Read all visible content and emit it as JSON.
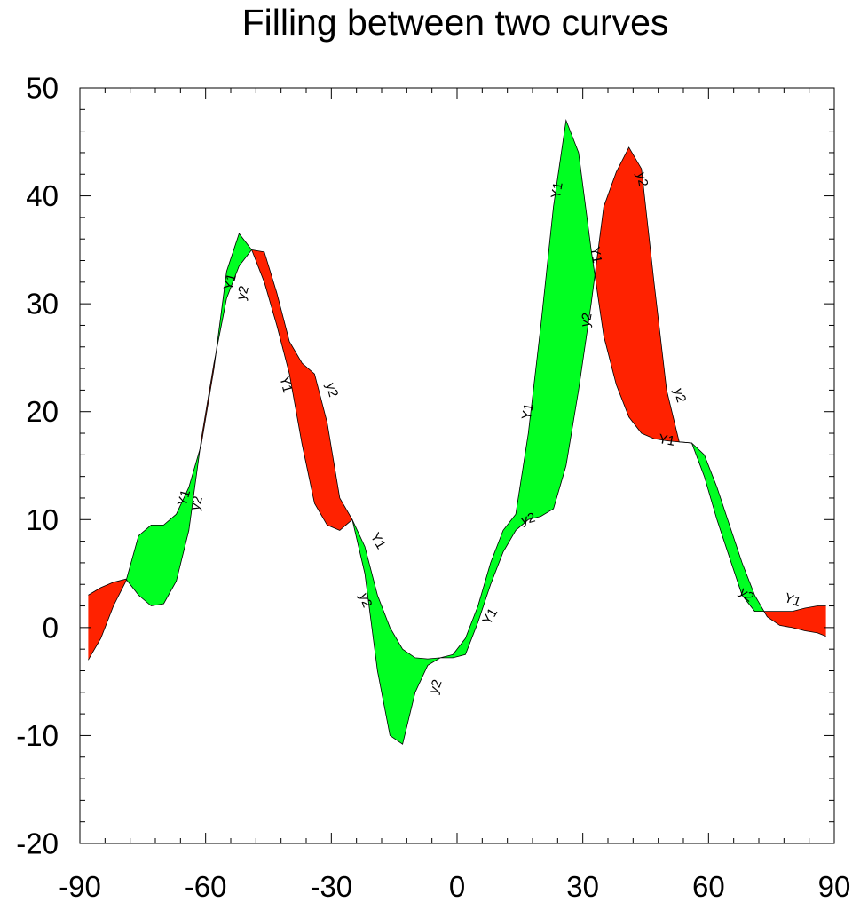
{
  "chart_data": {
    "type": "area",
    "title": "Filling between two curves",
    "xlabel": "",
    "ylabel": "",
    "xlim": [
      -90,
      90
    ],
    "ylim": [
      -20,
      50
    ],
    "x_ticks": [
      "-90",
      "-60",
      "-30",
      "0",
      "30",
      "60",
      "90"
    ],
    "y_ticks": [
      "-20",
      "-10",
      "0",
      "10",
      "20",
      "30",
      "40",
      "50"
    ],
    "fill_colors": {
      "above": "#00ff22",
      "below": "#ff2200"
    },
    "series": [
      {
        "name": "Y1",
        "x": [
          -88,
          -85,
          -82,
          -79,
          -76,
          -73,
          -70,
          -67,
          -64,
          -61,
          -58,
          -55,
          -52,
          -49,
          -46,
          -43,
          -40,
          -37,
          -34,
          -31,
          -28,
          -25,
          -22,
          -19,
          -16,
          -13,
          -10,
          -7,
          -4,
          -1,
          2,
          5,
          8,
          11,
          14,
          17,
          20,
          23,
          26,
          29,
          32,
          35,
          38,
          41,
          44,
          47,
          50,
          53,
          56,
          59,
          62,
          65,
          68,
          71,
          74,
          77,
          80,
          83,
          86,
          88
        ],
        "y": [
          -3,
          -1,
          2,
          4.3,
          8.5,
          9.5,
          9.5,
          10.5,
          13,
          17,
          24,
          33,
          36.5,
          35,
          32,
          28,
          23.5,
          17,
          11.5,
          9.5,
          9,
          10,
          7.5,
          3,
          0,
          -2,
          -2.8,
          -2.9,
          -2.8,
          -2.5,
          -1,
          2,
          6,
          9,
          10.5,
          18,
          28,
          39,
          47,
          44,
          35,
          27,
          22.5,
          19.5,
          18,
          17.5,
          17.3,
          17.2,
          17.1,
          16,
          13,
          9.5,
          6,
          3,
          1,
          0.2,
          0,
          -0.3,
          -0.5,
          -0.8
        ]
      },
      {
        "name": "y2",
        "x": [
          -88,
          -85,
          -82,
          -79,
          -76,
          -73,
          -70,
          -67,
          -64,
          -61,
          -58,
          -55,
          -52,
          -49,
          -46,
          -43,
          -40,
          -37,
          -34,
          -31,
          -28,
          -25,
          -22,
          -19,
          -16,
          -13,
          -10,
          -7,
          -4,
          -1,
          2,
          5,
          8,
          11,
          14,
          17,
          20,
          23,
          26,
          29,
          32,
          35,
          38,
          41,
          44,
          47,
          50,
          53,
          56,
          59,
          62,
          65,
          68,
          71,
          74,
          77,
          80,
          83,
          86,
          88
        ],
        "y": [
          3,
          3.7,
          4.2,
          4.5,
          3,
          2,
          2.2,
          4.3,
          9,
          17.5,
          24.5,
          30.5,
          33.5,
          35,
          34.8,
          31,
          26.5,
          24.5,
          23.5,
          19,
          12,
          10,
          5,
          -4,
          -10,
          -10.8,
          -6,
          -3.5,
          -2.8,
          -2.8,
          -2.5,
          0.5,
          4,
          7,
          9,
          10,
          10.3,
          11,
          15,
          22,
          30,
          39,
          42.2,
          44.5,
          42.5,
          32,
          22,
          17.2,
          17.1,
          14,
          10,
          6.5,
          3,
          1.5,
          1.5,
          1.5,
          1.5,
          1.8,
          2,
          2
        ]
      }
    ],
    "curve_labels": [
      {
        "text": "Y1",
        "x": -65,
        "y": 12,
        "angle": -75
      },
      {
        "text": "y2",
        "x": -62,
        "y": 11.5,
        "angle": -75
      },
      {
        "text": "Y1",
        "x": -54,
        "y": 32,
        "angle": -75
      },
      {
        "text": "y2",
        "x": -51,
        "y": 31,
        "angle": -75
      },
      {
        "text": "Y1",
        "x": -41,
        "y": 22.5,
        "angle": 75
      },
      {
        "text": "y2",
        "x": -30,
        "y": 22,
        "angle": 75
      },
      {
        "text": "Y1",
        "x": -19,
        "y": 8,
        "angle": 60
      },
      {
        "text": "y2",
        "x": -22,
        "y": 2.5,
        "angle": 70
      },
      {
        "text": "y2",
        "x": -5,
        "y": -5.5,
        "angle": -70
      },
      {
        "text": "Y1",
        "x": 8,
        "y": 1,
        "angle": -60
      },
      {
        "text": "Y1",
        "x": 17,
        "y": 20,
        "angle": -80
      },
      {
        "text": "y2",
        "x": 17,
        "y": 10,
        "angle": -15
      },
      {
        "text": "Y1",
        "x": 24,
        "y": 40.5,
        "angle": -80
      },
      {
        "text": "Y1",
        "x": 33,
        "y": 34.5,
        "angle": 80
      },
      {
        "text": "y2",
        "x": 31,
        "y": 28.5,
        "angle": -80
      },
      {
        "text": "y2",
        "x": 44,
        "y": 41.5,
        "angle": 80
      },
      {
        "text": "y2",
        "x": 53,
        "y": 21.5,
        "angle": 75
      },
      {
        "text": "Y1",
        "x": 50,
        "y": 17.3,
        "angle": 10
      },
      {
        "text": "y2",
        "x": 69,
        "y": 3,
        "angle": 40
      },
      {
        "text": "Y1",
        "x": 80,
        "y": 2.5,
        "angle": 20
      }
    ]
  }
}
